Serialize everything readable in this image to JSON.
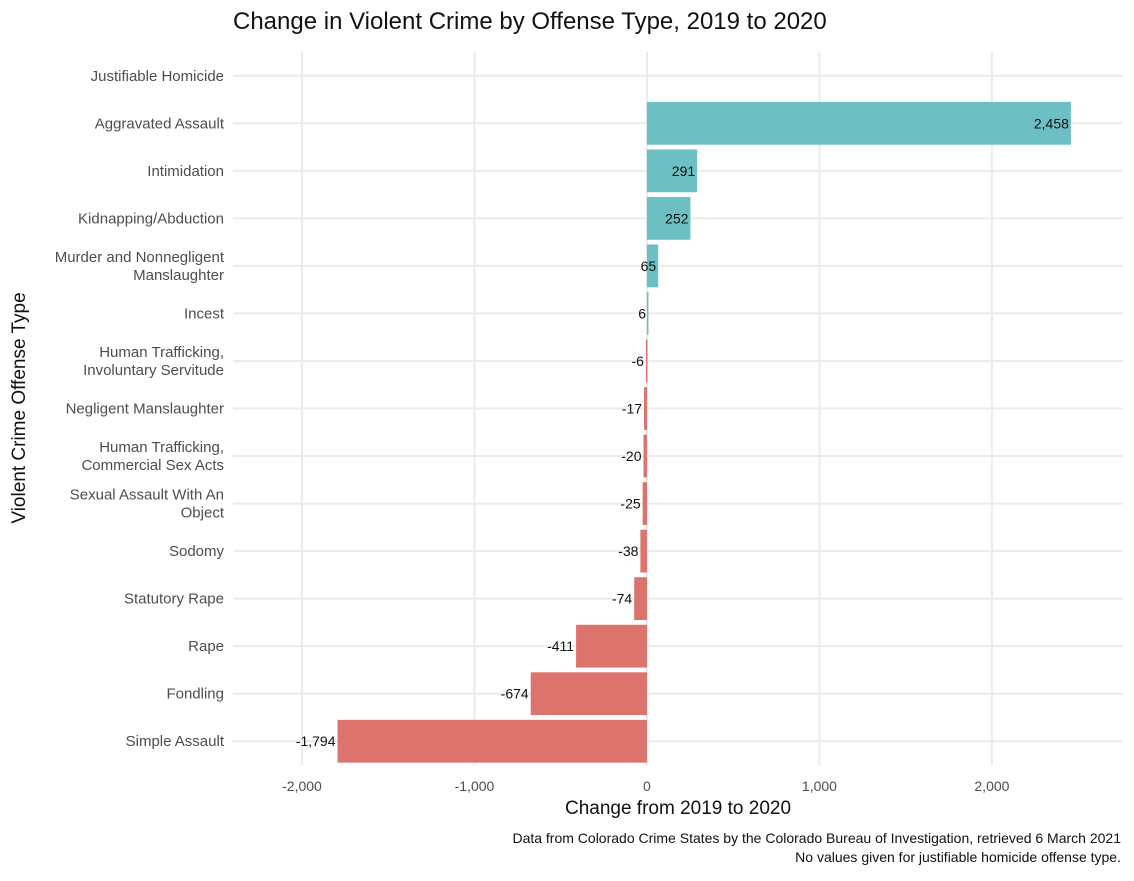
{
  "chart_data": {
    "type": "bar",
    "orientation": "horizontal",
    "title": "Change in Violent Crime by Offense Type, 2019 to 2020",
    "xlabel": "Change from 2019 to 2020",
    "ylabel": "Violent Crime Offense Type",
    "xlim": [
      -2400,
      2760
    ],
    "x_ticks": [
      -2000,
      -1000,
      0,
      1000,
      2000
    ],
    "x_tick_labels": [
      "-2,000",
      "-1,000",
      "0",
      "1,000",
      "2,000"
    ],
    "categories": [
      "Justifiable Homicide",
      "Aggravated Assault",
      "Intimidation",
      "Kidnapping/Abduction",
      "Murder and Nonnegligent Manslaughter",
      "Incest",
      "Human Trafficking, Involuntary Servitude",
      "Negligent Manslaughter",
      "Human Trafficking, Commercial Sex Acts",
      "Sexual Assault With An Object",
      "Sodomy",
      "Statutory Rape",
      "Rape",
      "Fondling",
      "Simple Assault"
    ],
    "category_lines": [
      [
        "Justifiable Homicide"
      ],
      [
        "Aggravated Assault"
      ],
      [
        "Intimidation"
      ],
      [
        "Kidnapping/Abduction"
      ],
      [
        "Murder and Nonnegligent",
        "Manslaughter"
      ],
      [
        "Incest"
      ],
      [
        "Human Trafficking,",
        "Involuntary Servitude"
      ],
      [
        "Negligent Manslaughter"
      ],
      [
        "Human Trafficking,",
        "Commercial Sex Acts"
      ],
      [
        "Sexual Assault With An",
        "Object"
      ],
      [
        "Sodomy"
      ],
      [
        "Statutory Rape"
      ],
      [
        "Rape"
      ],
      [
        "Fondling"
      ],
      [
        "Simple Assault"
      ]
    ],
    "values": [
      null,
      2458,
      291,
      252,
      65,
      6,
      -6,
      -17,
      -20,
      -25,
      -38,
      -74,
      -411,
      -674,
      -1794
    ],
    "value_labels": [
      "",
      "2,458",
      "291",
      "252",
      "65",
      "6",
      "-6",
      "-17",
      "-20",
      "-25",
      "-38",
      "-74",
      "-411",
      "-674",
      "-1,794"
    ],
    "colors": {
      "positive": "#6cbfc2",
      "negative": "#dc736d"
    },
    "grid": true,
    "legend": "none",
    "caption_lines": [
      "Data from Colorado Crime States by the Colorado Bureau of Investigation, retrieved 6 March 2021",
      "No values given for justifiable homicide offense type."
    ]
  }
}
